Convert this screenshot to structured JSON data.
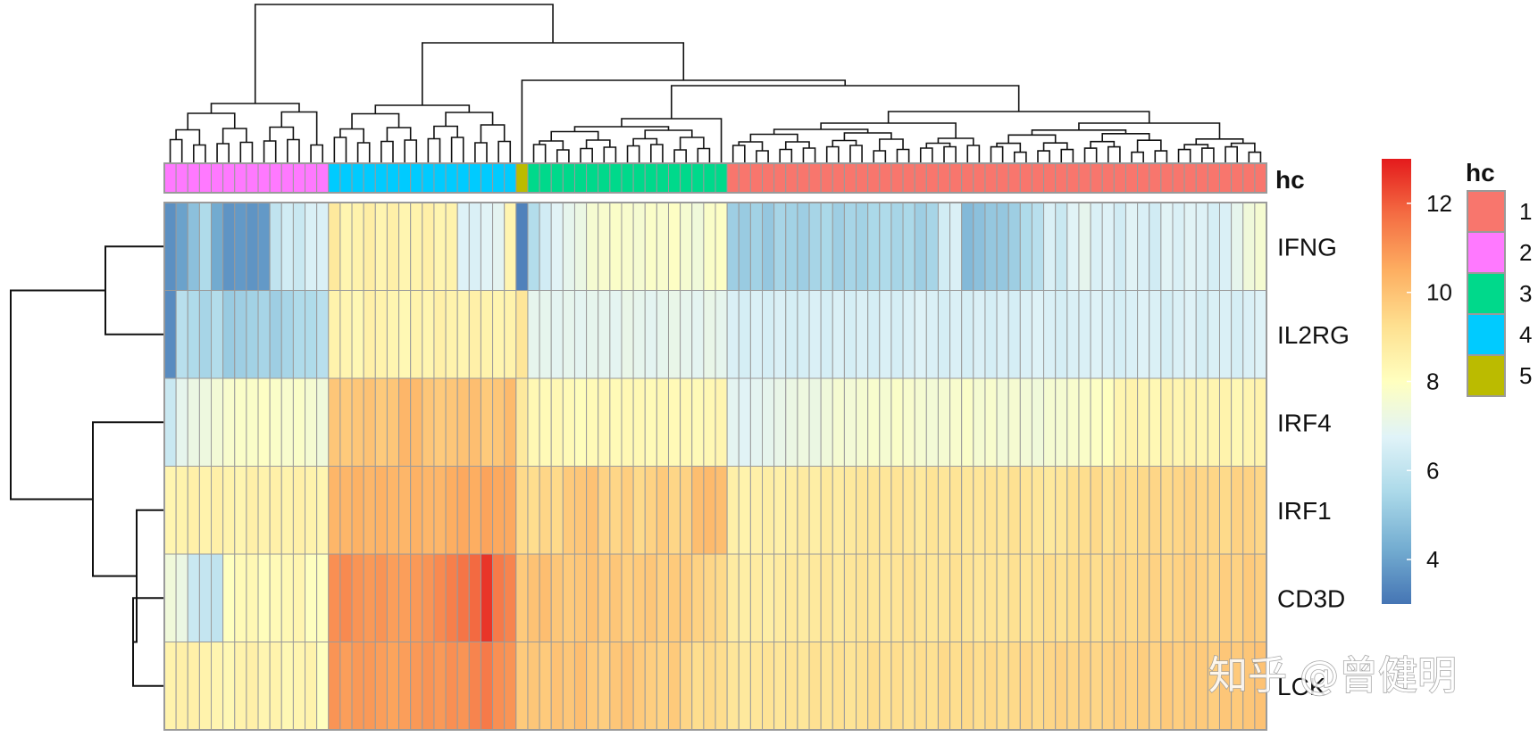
{
  "chart_data": {
    "type": "heatmap",
    "rows": [
      "IFNG",
      "IL2RG",
      "IRF4",
      "IRF1",
      "CD3D",
      "LCK"
    ],
    "annotation": {
      "name": "hc",
      "levels": [
        "1",
        "2",
        "3",
        "4",
        "5"
      ],
      "colors": {
        "1": "#F8766D",
        "2": "#FF79FF",
        "3": "#00D98B",
        "4": "#00CBFF",
        "5": "#BBBB00"
      },
      "column_groups": [
        {
          "cluster": "2",
          "count": 14
        },
        {
          "cluster": "4",
          "count": 16
        },
        {
          "cluster": "5",
          "count": 1
        },
        {
          "cluster": "3",
          "count": 17
        },
        {
          "cluster": "1",
          "count": 46
        }
      ]
    },
    "values_by_group": {
      "2": [
        [
          3.6,
          4.0,
          4.8,
          5.6,
          4.2,
          3.7,
          3.8,
          3.7,
          3.8,
          6.0,
          6.4,
          6.2,
          6.6,
          6.6
        ],
        [
          3.5,
          5.8,
          5.6,
          5.4,
          5.7,
          5.1,
          5.2,
          5.3,
          5.4,
          5.2,
          5.4,
          5.6,
          5.6,
          5.8
        ],
        [
          6.2,
          7.0,
          7.2,
          7.3,
          7.5,
          7.7,
          7.8,
          7.8,
          7.9,
          7.8,
          7.7,
          7.8,
          7.6,
          7.4
        ],
        [
          8.4,
          8.5,
          8.6,
          8.5,
          8.6,
          8.5,
          8.4,
          8.6,
          8.5,
          8.6,
          8.5,
          8.6,
          8.5,
          8.4
        ],
        [
          7.4,
          7.2,
          6.2,
          6.1,
          6.0,
          8.0,
          8.2,
          8.3,
          8.1,
          8.2,
          8.3,
          8.4,
          8.0,
          8.0
        ],
        [
          8.5,
          8.6,
          8.6,
          8.5,
          8.4,
          8.3,
          8.5,
          8.6,
          8.4,
          8.5,
          8.3,
          8.4,
          8.5,
          8.0
        ]
      ],
      "4": [
        [
          8.9,
          8.4,
          8.5,
          8.7,
          8.4,
          8.6,
          8.4,
          8.5,
          8.6,
          8.4,
          8.5,
          6.7,
          6.6,
          6.8,
          6.9,
          8.4
        ],
        [
          8.5,
          8.4,
          8.3,
          8.6,
          8.5,
          8.4,
          8.3,
          8.5,
          8.4,
          8.6,
          8.5,
          8.4,
          8.6,
          8.5,
          8.4,
          8.5
        ],
        [
          9.9,
          9.8,
          9.9,
          10.0,
          9.8,
          9.9,
          10.3,
          10.2,
          9.9,
          9.8,
          9.9,
          10.0,
          10.1,
          9.8,
          9.9,
          10.2
        ],
        [
          10.3,
          10.3,
          10.4,
          10.3,
          10.4,
          10.3,
          10.3,
          10.4,
          10.3,
          10.3,
          10.5,
          10.6,
          10.5,
          10.7,
          10.6,
          10.6
        ],
        [
          11.1,
          11.2,
          11.0,
          10.9,
          11.0,
          10.8,
          10.8,
          10.9,
          11.0,
          11.2,
          11.4,
          11.6,
          11.8,
          12.6,
          11.5,
          11.3
        ],
        [
          11.0,
          10.8,
          10.9,
          10.9,
          10.8,
          10.7,
          10.8,
          10.9,
          11.0,
          10.9,
          11.1,
          11.0,
          11.3,
          11.5,
          11.1,
          11.0
        ]
      ],
      "5": [
        [
          3.3
        ],
        [
          9.0
        ],
        [
          8.9
        ],
        [
          9.4
        ],
        [
          9.8
        ],
        [
          9.8
        ]
      ],
      "3": [
        [
          5.7,
          6.4,
          6.8,
          7.0,
          7.2,
          7.6,
          7.7,
          7.8,
          7.7,
          7.6,
          7.8,
          7.7,
          7.9,
          7.6,
          7.4,
          7.8,
          7.9
        ],
        [
          7.0,
          7.0,
          6.9,
          7.0,
          6.9,
          7.0,
          7.0,
          6.9,
          7.1,
          7.0,
          6.9,
          7.0,
          7.1,
          7.0,
          6.9,
          7.1,
          7.0
        ],
        [
          8.3,
          8.2,
          8.3,
          8.2,
          8.1,
          8.2,
          8.3,
          8.2,
          8.3,
          8.3,
          8.2,
          8.3,
          8.2,
          8.3,
          8.2,
          8.3,
          8.4
        ],
        [
          9.3,
          9.5,
          9.4,
          9.8,
          9.9,
          10.0,
          9.6,
          9.5,
          9.7,
          9.4,
          9.6,
          9.8,
          9.5,
          9.6,
          10.1,
          10.2,
          10.1
        ],
        [
          10.0,
          10.1,
          9.9,
          9.8,
          9.9,
          10.0,
          9.8,
          9.9,
          9.7,
          9.8,
          9.9,
          9.7,
          9.8,
          9.8,
          9.6,
          9.5,
          9.4
        ],
        [
          9.9,
          9.8,
          10.0,
          9.9,
          10.1,
          9.8,
          9.7,
          9.9,
          10.0,
          9.8,
          9.7,
          9.6,
          9.8,
          9.5,
          9.3,
          9.4,
          9.3
        ]
      ],
      "1": [
        [
          5.2,
          5.1,
          5.3,
          5.0,
          5.4,
          5.3,
          5.2,
          5.4,
          5.5,
          5.2,
          5.4,
          5.3,
          5.5,
          5.6,
          5.4,
          5.5,
          5.2,
          5.4,
          6.4,
          6.6,
          4.6,
          4.8,
          5.0,
          5.0,
          5.2,
          5.6,
          5.8,
          6.6,
          6.2,
          6.8,
          7.0,
          6.6,
          6.7,
          6.4,
          6.8,
          6.6,
          6.4,
          6.8,
          6.6,
          6.8,
          6.7,
          6.5,
          6.6,
          7.0,
          7.4,
          7.6
        ],
        [
          6.6,
          6.5,
          6.6,
          6.5,
          6.6,
          6.5,
          6.5,
          6.6,
          6.5,
          6.6,
          6.5,
          6.6,
          6.5,
          6.6,
          6.5,
          6.6,
          6.7,
          6.6,
          6.5,
          6.6,
          6.5,
          6.6,
          6.5,
          6.6,
          6.5,
          6.6,
          6.7,
          6.6,
          6.5,
          6.6,
          6.6,
          6.7,
          6.6,
          6.5,
          6.6,
          6.7,
          6.6,
          6.5,
          6.6,
          6.7,
          6.5,
          6.6,
          6.6,
          6.5,
          6.6,
          6.7
        ],
        [
          6.9,
          6.8,
          6.9,
          7.0,
          7.1,
          7.2,
          7.3,
          7.2,
          7.4,
          7.6,
          7.5,
          7.6,
          7.7,
          7.6,
          7.8,
          7.7,
          7.6,
          7.5,
          7.6,
          7.7,
          7.8,
          7.6,
          7.7,
          7.5,
          7.6,
          7.5,
          7.4,
          7.6,
          7.6,
          7.7,
          7.8,
          7.9,
          8.0,
          8.4,
          8.5,
          8.4,
          8.3,
          8.5,
          8.4,
          8.5,
          8.4,
          8.4,
          8.5,
          8.3,
          8.4,
          8.5
        ],
        [
          8.6,
          8.5,
          8.6,
          8.7,
          8.6,
          8.7,
          8.8,
          8.7,
          8.9,
          8.8,
          8.9,
          9.0,
          9.0,
          9.0,
          9.1,
          9.0,
          8.9,
          9.1,
          9.0,
          9.1,
          9.0,
          9.0,
          9.1,
          9.0,
          9.2,
          9.1,
          9.0,
          8.9,
          9.0,
          9.2,
          9.3,
          9.4,
          9.2,
          9.4,
          9.3,
          9.4,
          9.5,
          9.4,
          9.5,
          9.6,
          9.5,
          9.5,
          9.4,
          9.6,
          9.6,
          9.5
        ],
        [
          8.8,
          8.7,
          8.8,
          8.7,
          8.8,
          8.9,
          8.8,
          8.9,
          9.0,
          8.9,
          9.0,
          9.1,
          9.0,
          9.0,
          9.1,
          9.2,
          9.1,
          9.0,
          9.1,
          9.2,
          9.1,
          9.0,
          9.1,
          9.0,
          9.2,
          9.1,
          9.2,
          9.3,
          9.2,
          9.3,
          9.4,
          9.3,
          9.4,
          9.5,
          9.4,
          9.5,
          9.6,
          9.5,
          9.6,
          9.7,
          9.6,
          9.5,
          9.7,
          9.6,
          9.8,
          9.7
        ],
        [
          9.0,
          8.9,
          9.0,
          9.1,
          9.0,
          9.1,
          9.0,
          9.2,
          9.1,
          9.2,
          9.1,
          9.2,
          9.3,
          9.2,
          9.3,
          9.2,
          9.3,
          9.2,
          9.4,
          9.3,
          9.4,
          9.3,
          9.4,
          9.3,
          9.4,
          9.5,
          9.4,
          9.5,
          9.6,
          9.5,
          9.6,
          9.5,
          9.6,
          9.7,
          9.6,
          9.7,
          9.6,
          9.8,
          9.7,
          9.8,
          9.8,
          9.7,
          9.9,
          9.8,
          9.9,
          10.0
        ]
      ]
    },
    "colorbar": {
      "min": 3.0,
      "max": 13.0,
      "ticks": [
        4,
        6,
        8,
        10,
        12
      ],
      "palette": [
        "#4575B4",
        "#74ADD1",
        "#ABD9E9",
        "#E0F3F8",
        "#FFFFBF",
        "#FEE090",
        "#FDAE61",
        "#F46D43",
        "#E41A1C"
      ]
    },
    "legend": {
      "title": "hc",
      "position": "right"
    },
    "row_dendrogram": true,
    "column_dendrogram": true
  },
  "watermark": "知乎 @曾健明"
}
